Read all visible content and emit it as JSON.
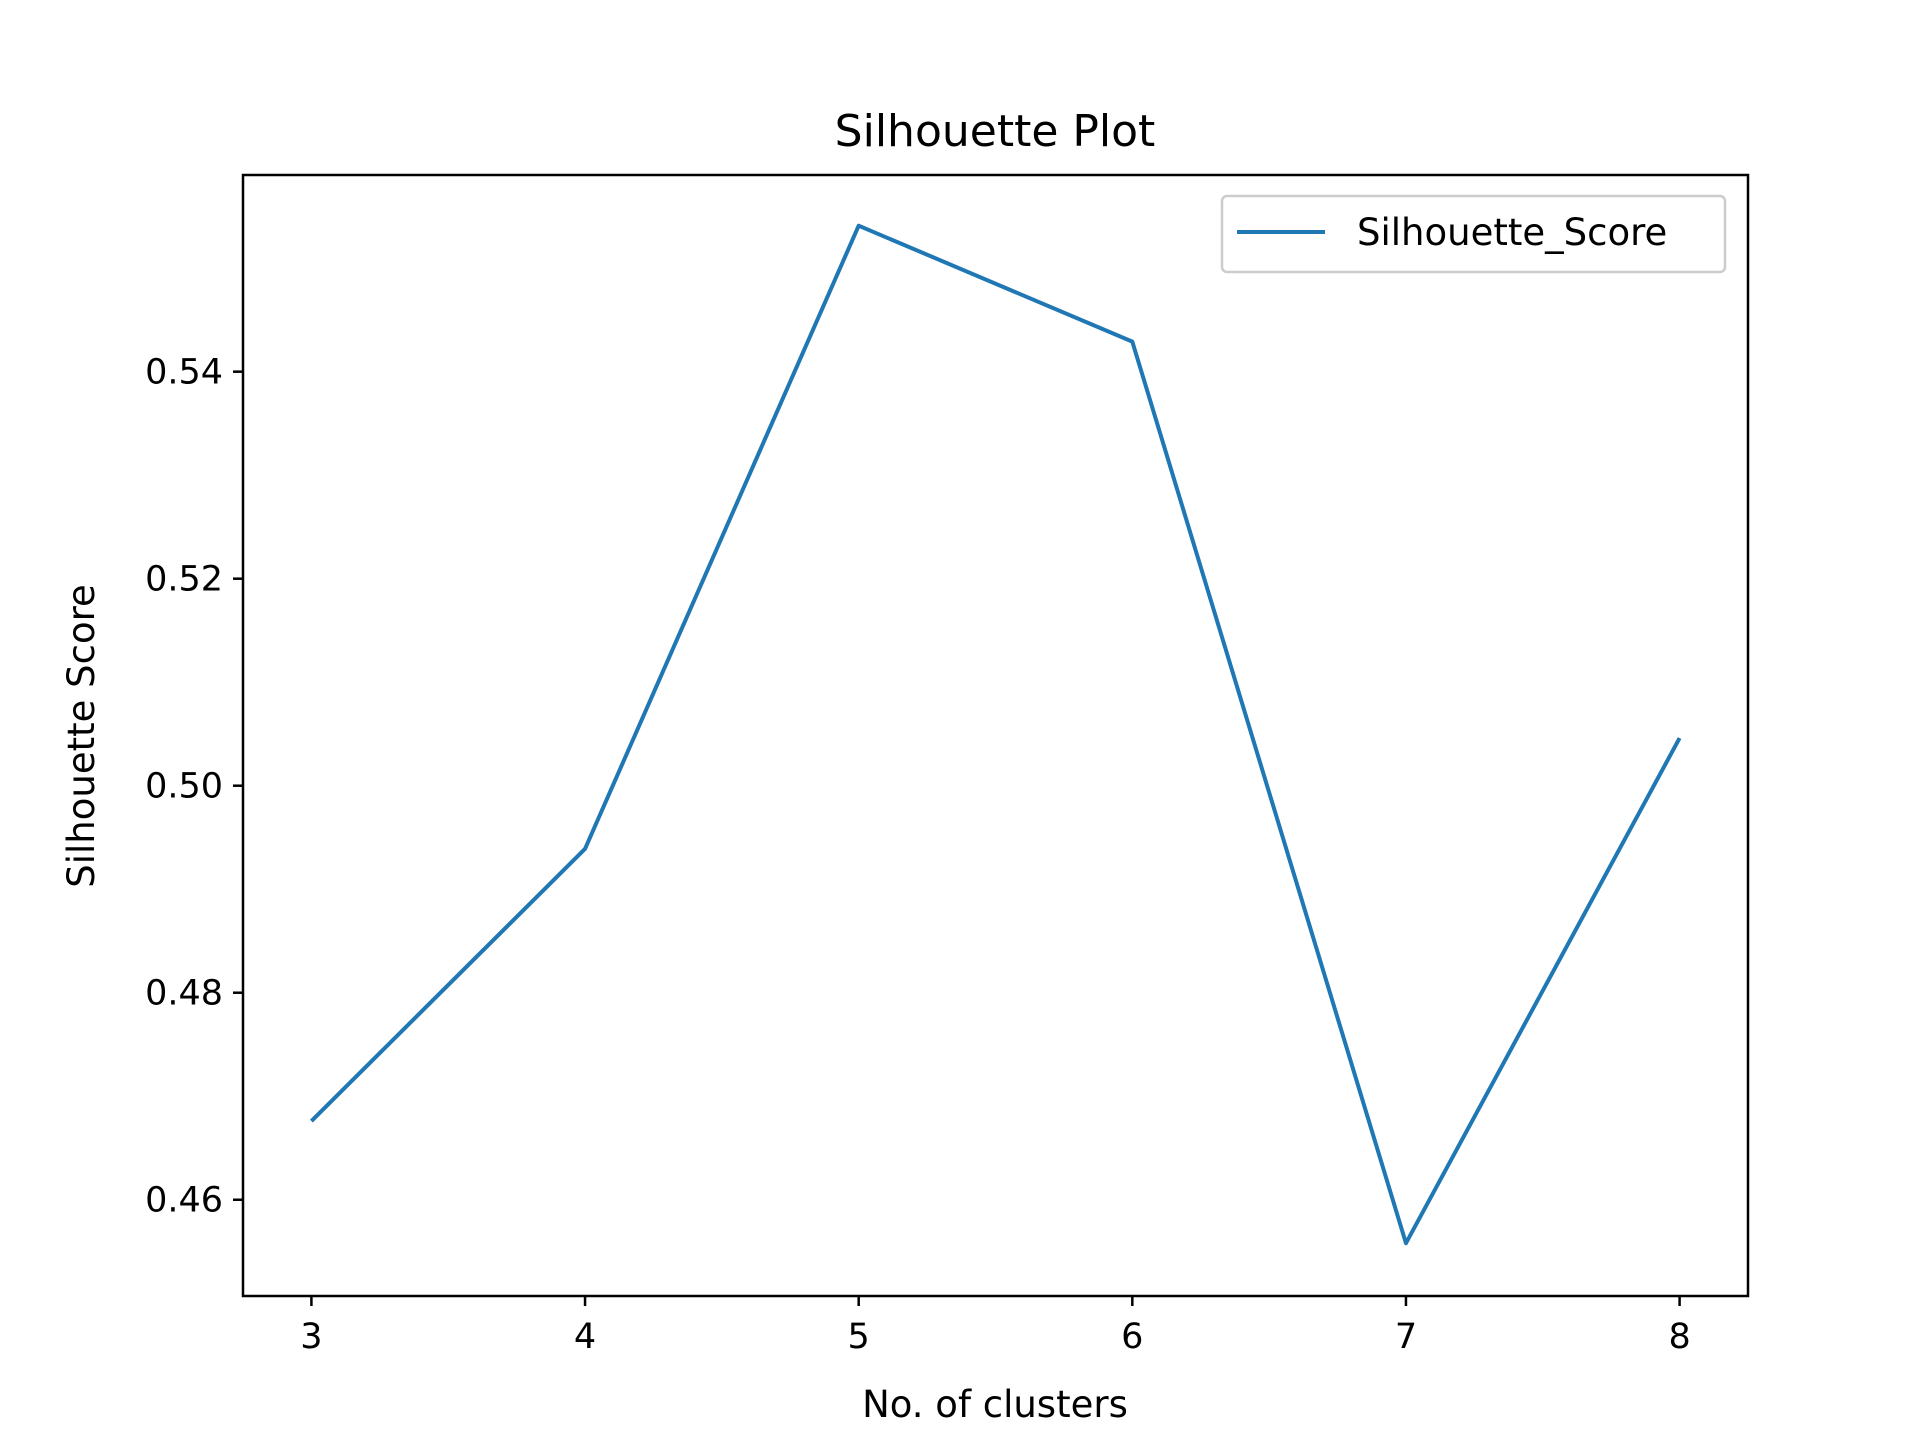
{
  "chart_data": {
    "type": "line",
    "title": "Silhouette Plot",
    "xlabel": "No. of clusters",
    "ylabel": "Silhouette Score",
    "x": [
      3,
      4,
      5,
      6,
      7,
      8
    ],
    "series": [
      {
        "name": "Silhouette_Score",
        "color": "#1f77b4",
        "values": [
          0.4676,
          0.4939,
          0.5541,
          0.5429,
          0.4558,
          0.5046
        ]
      }
    ],
    "xlim": [
      2.75,
      8.25
    ],
    "ylim": [
      0.4507,
      0.559
    ],
    "xticks": [
      "3",
      "4",
      "5",
      "6",
      "7",
      "8"
    ],
    "yticks": [
      "0.46",
      "0.48",
      "0.50",
      "0.52",
      "0.54"
    ],
    "legend": "top-right",
    "grid": false
  }
}
